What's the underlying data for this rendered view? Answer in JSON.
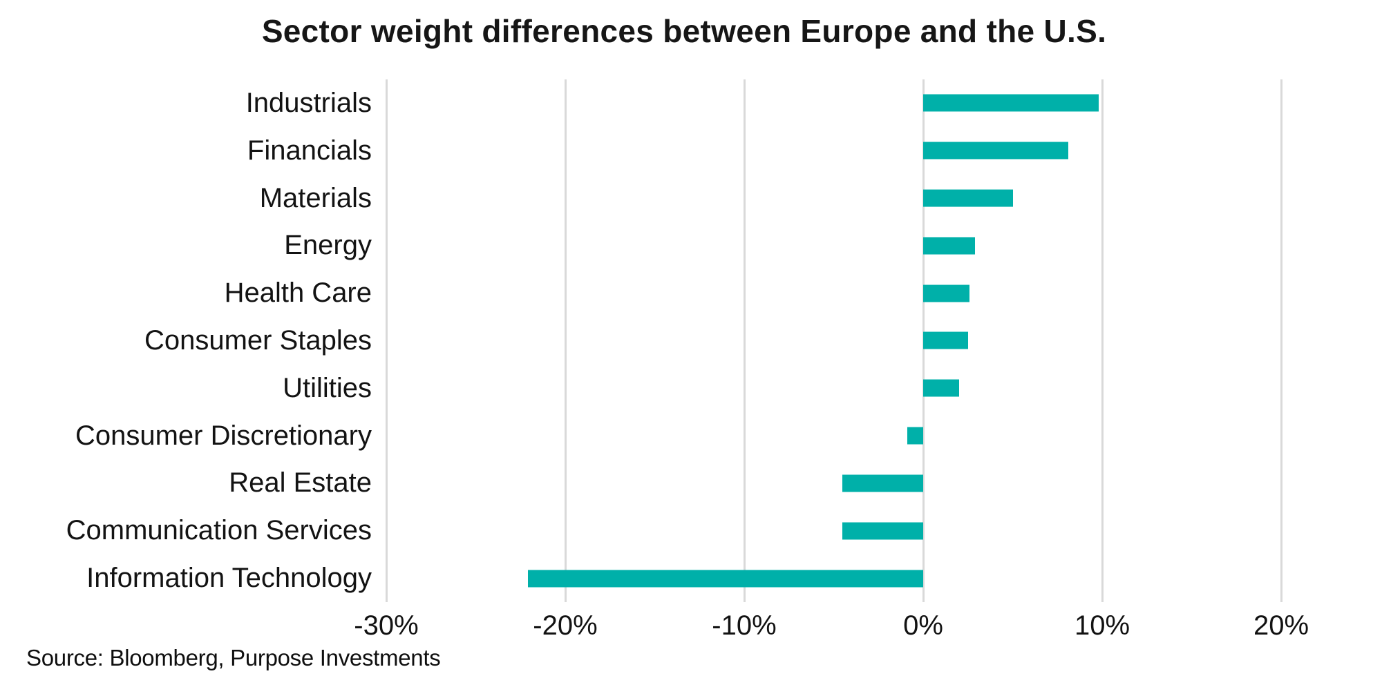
{
  "title": "Sector weight differences between Europe and the U.S.",
  "source": "Source: Bloomberg, Purpose Investments",
  "colors": {
    "bar": "#00b0a9",
    "gridline": "#d9d9d9",
    "text": "#141414"
  },
  "chart_data": {
    "type": "bar",
    "orientation": "horizontal",
    "title": "Sector weight differences between Europe and the U.S.",
    "categories": [
      "Industrials",
      "Financials",
      "Materials",
      "Energy",
      "Health Care",
      "Consumer Staples",
      "Utilities",
      "Consumer Discretionary",
      "Real Estate",
      "Communication Services",
      "Information Technology"
    ],
    "values": [
      9.8,
      8.1,
      5.0,
      2.9,
      2.6,
      2.5,
      2.0,
      -0.9,
      -4.5,
      -4.5,
      -22.1
    ],
    "unit": "%",
    "xlabel": "",
    "ylabel": "",
    "xlim": [
      -30,
      20
    ],
    "x_ticks": [
      -30,
      -20,
      -10,
      0,
      10,
      20
    ],
    "x_tick_labels": [
      "-30%",
      "-20%",
      "-10%",
      "0%",
      "10%",
      "20%"
    ],
    "grid": "vertical",
    "legend": false
  }
}
